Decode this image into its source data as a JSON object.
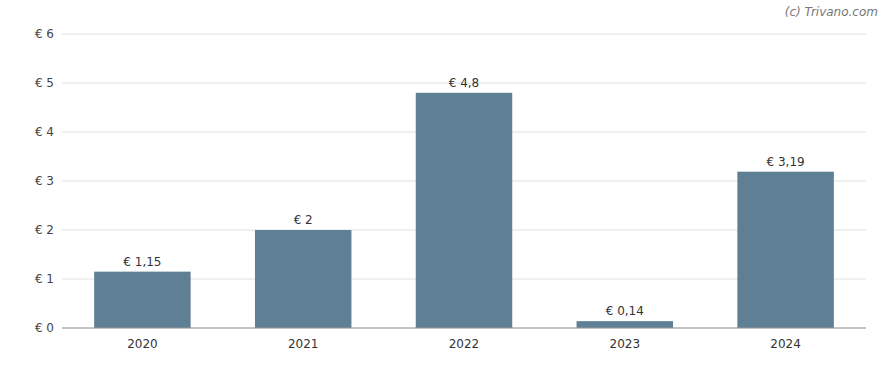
{
  "chart_data": {
    "type": "bar",
    "annotation": "(c) Trivano.com",
    "categories": [
      "2020",
      "2021",
      "2022",
      "2023",
      "2024"
    ],
    "values": [
      1.15,
      2.0,
      4.8,
      0.14,
      3.19
    ],
    "value_labels": [
      "€ 1,15",
      "€ 2",
      "€ 4,8",
      "€ 0,14",
      "€ 3,19"
    ],
    "color": "#5f7f95",
    "ylim": [
      0,
      6
    ],
    "yticks": [
      {
        "value": 0,
        "label": "€ 0"
      },
      {
        "value": 1,
        "label": "€ 1"
      },
      {
        "value": 2,
        "label": "€ 2"
      },
      {
        "value": 3,
        "label": "€ 3"
      },
      {
        "value": 4,
        "label": "€ 4"
      },
      {
        "value": 5,
        "label": "€ 5"
      },
      {
        "value": 6,
        "label": "€ 6"
      }
    ],
    "grid": true,
    "data_labels": true
  }
}
